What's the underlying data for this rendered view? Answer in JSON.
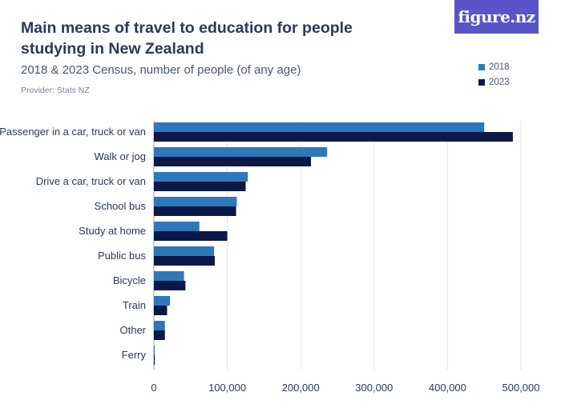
{
  "header": {
    "title": "Main means of travel to education for people studying in New Zealand",
    "subtitle": "2018 & 2023 Census, number of people (of any age)",
    "provider": "Provider: Stats NZ",
    "logo": "figure.nz"
  },
  "colors": {
    "series_2018": "#2e78b9",
    "series_2023": "#0c1947",
    "grid": "#e3e3e3",
    "logo_bg": "#5855c9"
  },
  "chart_data": {
    "type": "bar",
    "orientation": "horizontal",
    "title": "Main means of travel to education for people studying in New Zealand",
    "subtitle": "2018 & 2023 Census, number of people (of any age)",
    "categories": [
      "Passenger in a car, truck or van",
      "Walk or jog",
      "Drive a car, truck or van",
      "School bus",
      "Study at home",
      "Public bus",
      "Bicycle",
      "Train",
      "Other",
      "Ferry"
    ],
    "series": [
      {
        "name": "2018",
        "values": [
          450000,
          236000,
          128000,
          113000,
          62000,
          82000,
          41000,
          22000,
          15000,
          1000
        ]
      },
      {
        "name": "2023",
        "values": [
          489000,
          214000,
          125000,
          112000,
          100000,
          83000,
          43000,
          18000,
          15000,
          1200
        ]
      }
    ],
    "xlim": [
      0,
      500000
    ],
    "xticks": [
      0,
      100000,
      200000,
      300000,
      400000,
      500000
    ],
    "xtick_labels": [
      "0",
      "100,000",
      "200,000",
      "300,000",
      "400,000",
      "500,000"
    ],
    "grid": true,
    "legend_position": "top-right"
  }
}
